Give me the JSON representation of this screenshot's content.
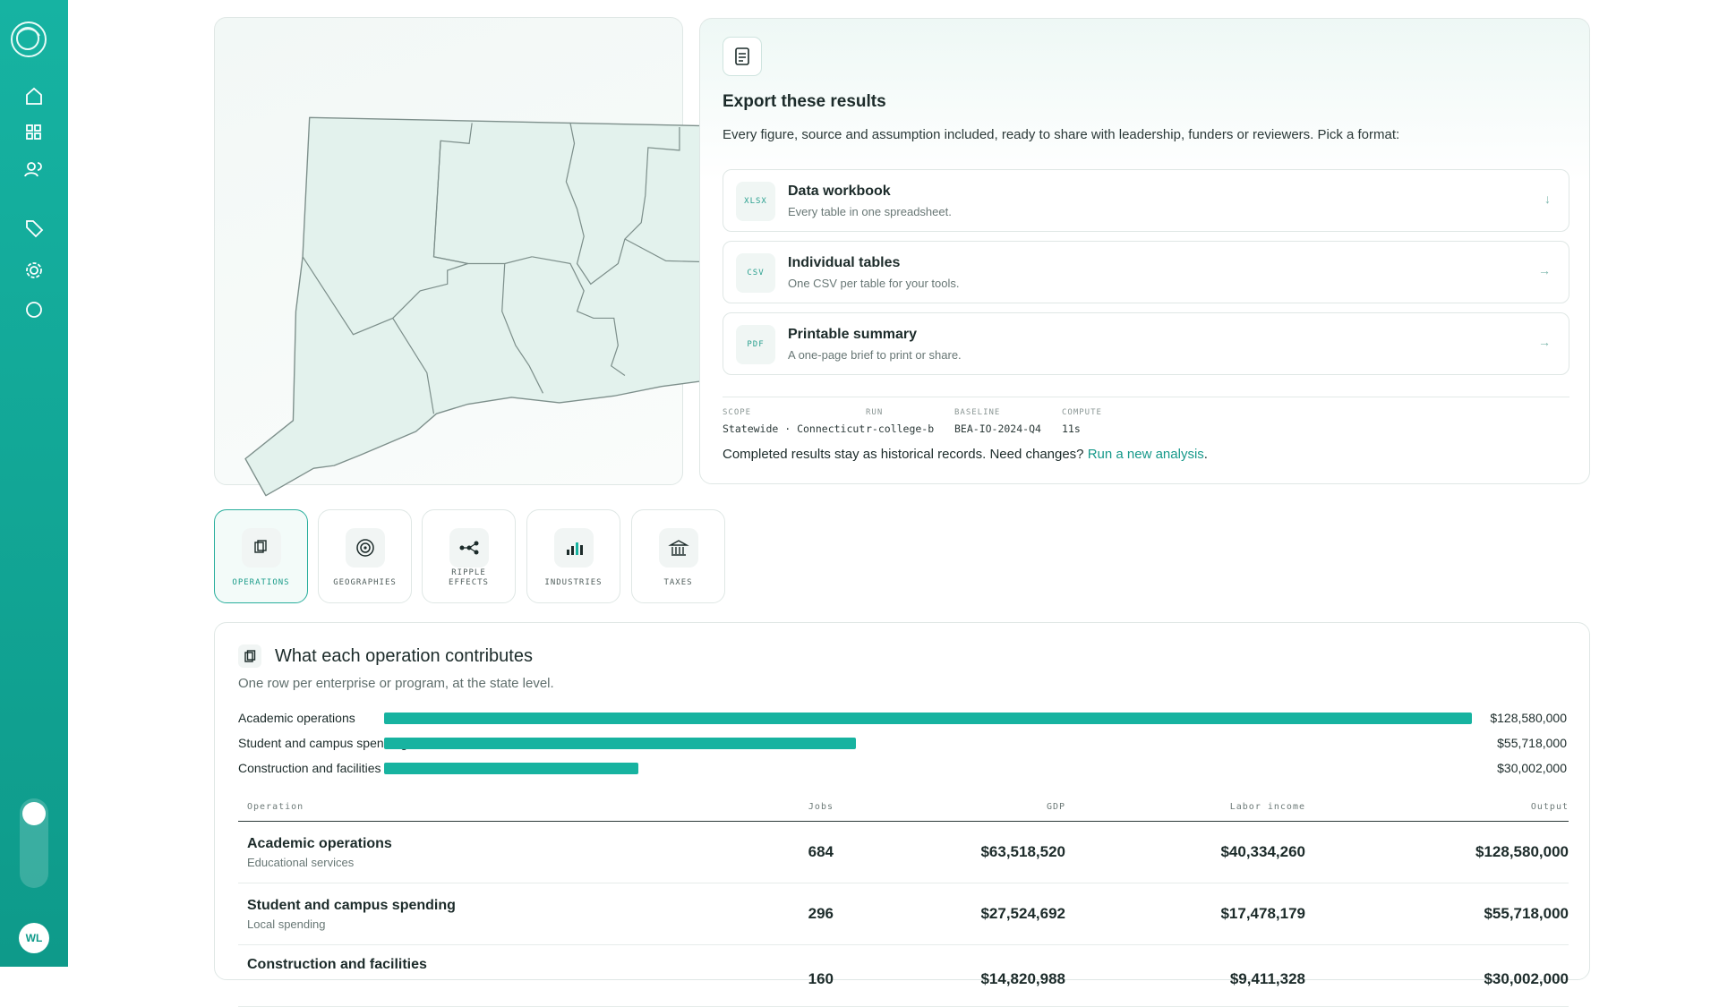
{
  "user": {
    "initials": "WL"
  },
  "export": {
    "title": "Export these results",
    "description": "Every figure, source and assumption included, ready to share with leadership, funders or reviewers. Pick a format:",
    "options": [
      {
        "badge": "XLSX",
        "title": "Data workbook",
        "subtitle": "Every table in one spreadsheet.",
        "arrow": "↓"
      },
      {
        "badge": "CSV",
        "title": "Individual tables",
        "subtitle": "One CSV per table for your tools.",
        "arrow": "→"
      },
      {
        "badge": "PDF",
        "title": "Printable summary",
        "subtitle": "A one-page brief to print or share.",
        "arrow": "→"
      }
    ],
    "meta": [
      {
        "label": "SCOPE",
        "value": "Statewide · Connecticut"
      },
      {
        "label": "RUN",
        "value": "r-college-b"
      },
      {
        "label": "BASELINE",
        "value": "BEA-IO-2024-Q4"
      },
      {
        "label": "COMPUTE",
        "value": "11s"
      }
    ],
    "footer": {
      "text": "Completed results stay as historical records. Need changes? ",
      "link": "Run a new analysis",
      "end": "."
    }
  },
  "tabs": [
    "OPERATIONS",
    "GEOGRAPHIES",
    "RIPPLE EFFECTS",
    "INDUSTRIES",
    "TAXES"
  ],
  "chart_data": {
    "type": "bar",
    "orientation": "horizontal",
    "title": "What each operation contributes",
    "subtitle": "One row per enterprise or program, at the state level.",
    "categories": [
      "Academic operations",
      "Student and campus spending",
      "Construction and facilities"
    ],
    "values": [
      128580000,
      55718000,
      30002000
    ],
    "value_labels": [
      "$128,580,000",
      "$55,718,000",
      "$30,002,000"
    ],
    "color": "#17b3a0"
  },
  "table": {
    "columns": [
      "Operation",
      "Jobs",
      "GDP",
      "Labor income",
      "Output"
    ],
    "rows": [
      [
        "Academic operations",
        "Educational services",
        "684",
        "$63,518,520",
        "$40,334,260",
        "$128,580,000"
      ],
      [
        "Student and campus spending",
        "Local spending",
        "296",
        "$27,524,692",
        "$17,478,179",
        "$55,718,000"
      ],
      [
        "Construction and facilities",
        "",
        "160",
        "$14,820,988",
        "$9,411,328",
        "$30,002,000"
      ]
    ]
  }
}
